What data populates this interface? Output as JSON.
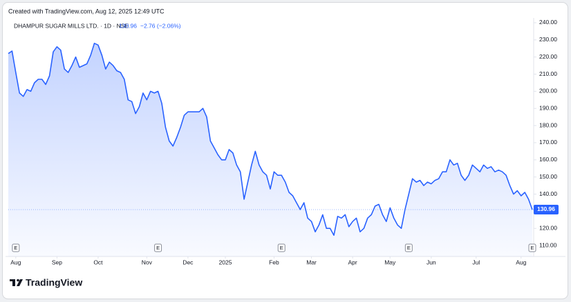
{
  "header": "Created with TradingView.com, Aug 12, 2025 12:49 UTC",
  "brand": "TradingView",
  "chart_data": {
    "type": "area",
    "title": "DHAMPUR SUGAR MILLS LTD. · 1D · NSE",
    "legend_change": "−2.76 (−2.06%)",
    "color": "#2962ff",
    "grid": false,
    "values": [
      222,
      223.5,
      211,
      199,
      197,
      201,
      200,
      205,
      207,
      207,
      204,
      209,
      223,
      226,
      224,
      213,
      211,
      215,
      220,
      214,
      215,
      216,
      221,
      228,
      227,
      221,
      213,
      217,
      215,
      212,
      211,
      207,
      195,
      194,
      187,
      191,
      199,
      195,
      200,
      199,
      200,
      193,
      179,
      171,
      168,
      173,
      179,
      186,
      188,
      188,
      188,
      188,
      190,
      185,
      171,
      167,
      163,
      160,
      160,
      166,
      164,
      157,
      153,
      137,
      147,
      157,
      165,
      157,
      153,
      151,
      143,
      153,
      151,
      151,
      147,
      141,
      139,
      135,
      131,
      135,
      126,
      124,
      118,
      122,
      128,
      120,
      120,
      116,
      127,
      126,
      128,
      121,
      124,
      126,
      118,
      120,
      126,
      128,
      133,
      134,
      128,
      124,
      132,
      126,
      122,
      120,
      131,
      140,
      149,
      147,
      148,
      145,
      147,
      146,
      148,
      149,
      153,
      153,
      160,
      157,
      158,
      151,
      148,
      151,
      157,
      155,
      153,
      157,
      155,
      156,
      153,
      154,
      153,
      151,
      145,
      140,
      142,
      139,
      141,
      137,
      130.96
    ],
    "xlim": [
      0,
      140
    ],
    "xticks": [
      {
        "value": 2,
        "label": "Aug"
      },
      {
        "value": 13,
        "label": "Sep"
      },
      {
        "value": 24,
        "label": "Oct"
      },
      {
        "value": 37,
        "label": "Nov"
      },
      {
        "value": 48,
        "label": "Dec"
      },
      {
        "value": 58,
        "label": "2025"
      },
      {
        "value": 71,
        "label": "Feb"
      },
      {
        "value": 81,
        "label": "Mar"
      },
      {
        "value": 92,
        "label": "Apr"
      },
      {
        "value": 102,
        "label": "May"
      },
      {
        "value": 113,
        "label": "Jun"
      },
      {
        "value": 125,
        "label": "Jul"
      },
      {
        "value": 137,
        "label": "Aug"
      }
    ],
    "ylim": [
      103.6,
      242
    ],
    "yticks": [
      {
        "value": 110,
        "label": "110.00"
      },
      {
        "value": 120,
        "label": "120.00"
      },
      {
        "value": 130,
        "label": "130.00"
      },
      {
        "value": 140,
        "label": "140.00"
      },
      {
        "value": 150,
        "label": "150.00"
      },
      {
        "value": 160,
        "label": "160.00"
      },
      {
        "value": 170,
        "label": "170.00"
      },
      {
        "value": 180,
        "label": "180.00"
      },
      {
        "value": 190,
        "label": "190.00"
      },
      {
        "value": 200,
        "label": "200.00"
      },
      {
        "value": 210,
        "label": "210.00"
      },
      {
        "value": 220,
        "label": "220.00"
      },
      {
        "value": 230,
        "label": "230.00"
      },
      {
        "value": 240,
        "label": "240.00"
      }
    ],
    "events": [
      {
        "index": 2,
        "label": "E"
      },
      {
        "index": 40,
        "label": "E"
      },
      {
        "index": 73,
        "label": "E"
      },
      {
        "index": 107,
        "label": "E"
      },
      {
        "index": 140,
        "label": "E"
      }
    ]
  }
}
